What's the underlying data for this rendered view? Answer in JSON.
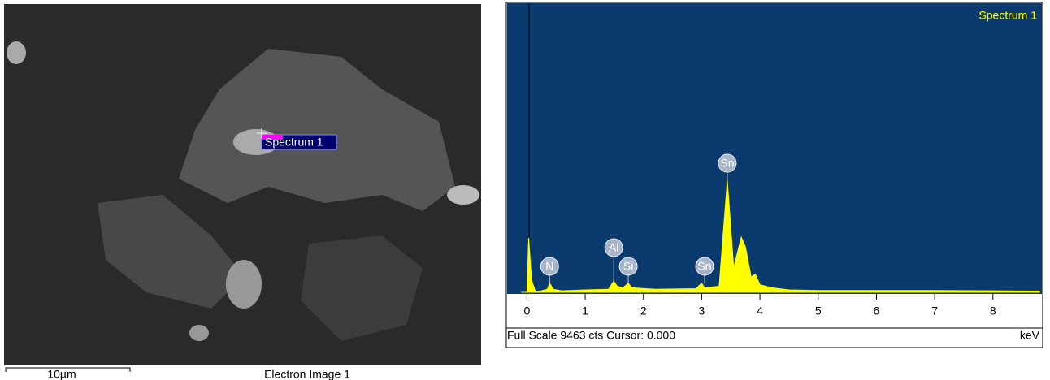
{
  "image_panel": {
    "marker_label": "Spectrum 1",
    "scale_bar": "10µm",
    "caption": "Electron Image 1"
  },
  "chart_data": {
    "type": "area",
    "title": "Spectrum 1",
    "footer": "Full Scale 9463 cts Cursor: 0.000",
    "x_label": "keV",
    "x": [
      -0.1,
      0.0,
      0.03,
      0.08,
      0.15,
      0.35,
      0.39,
      0.45,
      0.6,
      1.0,
      1.4,
      1.49,
      1.55,
      1.65,
      1.74,
      1.8,
      2.2,
      2.9,
      3.0,
      3.05,
      3.3,
      3.44,
      3.55,
      3.6,
      3.68,
      3.75,
      3.85,
      3.92,
      4.0,
      4.2,
      4.5,
      5.0,
      6.0,
      7.0,
      8.0,
      8.8
    ],
    "series": [
      {
        "name": "Spectrum 1",
        "color": "#ffff00",
        "values": [
          0,
          0,
          1790,
          400,
          0,
          100,
          300,
          100,
          50,
          80,
          100,
          370,
          200,
          150,
          300,
          150,
          100,
          120,
          300,
          150,
          200,
          3680,
          800,
          1200,
          1810,
          1500,
          500,
          600,
          250,
          150,
          80,
          60,
          60,
          60,
          50,
          40
        ]
      }
    ],
    "annotations": [
      {
        "label": "N",
        "x": 0.39
      },
      {
        "label": "Al",
        "x": 1.49
      },
      {
        "label": "Si",
        "x": 1.74
      },
      {
        "label": "Sn",
        "x": 3.05
      },
      {
        "label": "Sn",
        "x": 3.44
      }
    ],
    "xlim": [
      -0.34,
      8.84
    ],
    "ylim": [
      0,
      9463
    ],
    "xticks": [
      0,
      1,
      2,
      3,
      4,
      5,
      6,
      7,
      8
    ]
  }
}
